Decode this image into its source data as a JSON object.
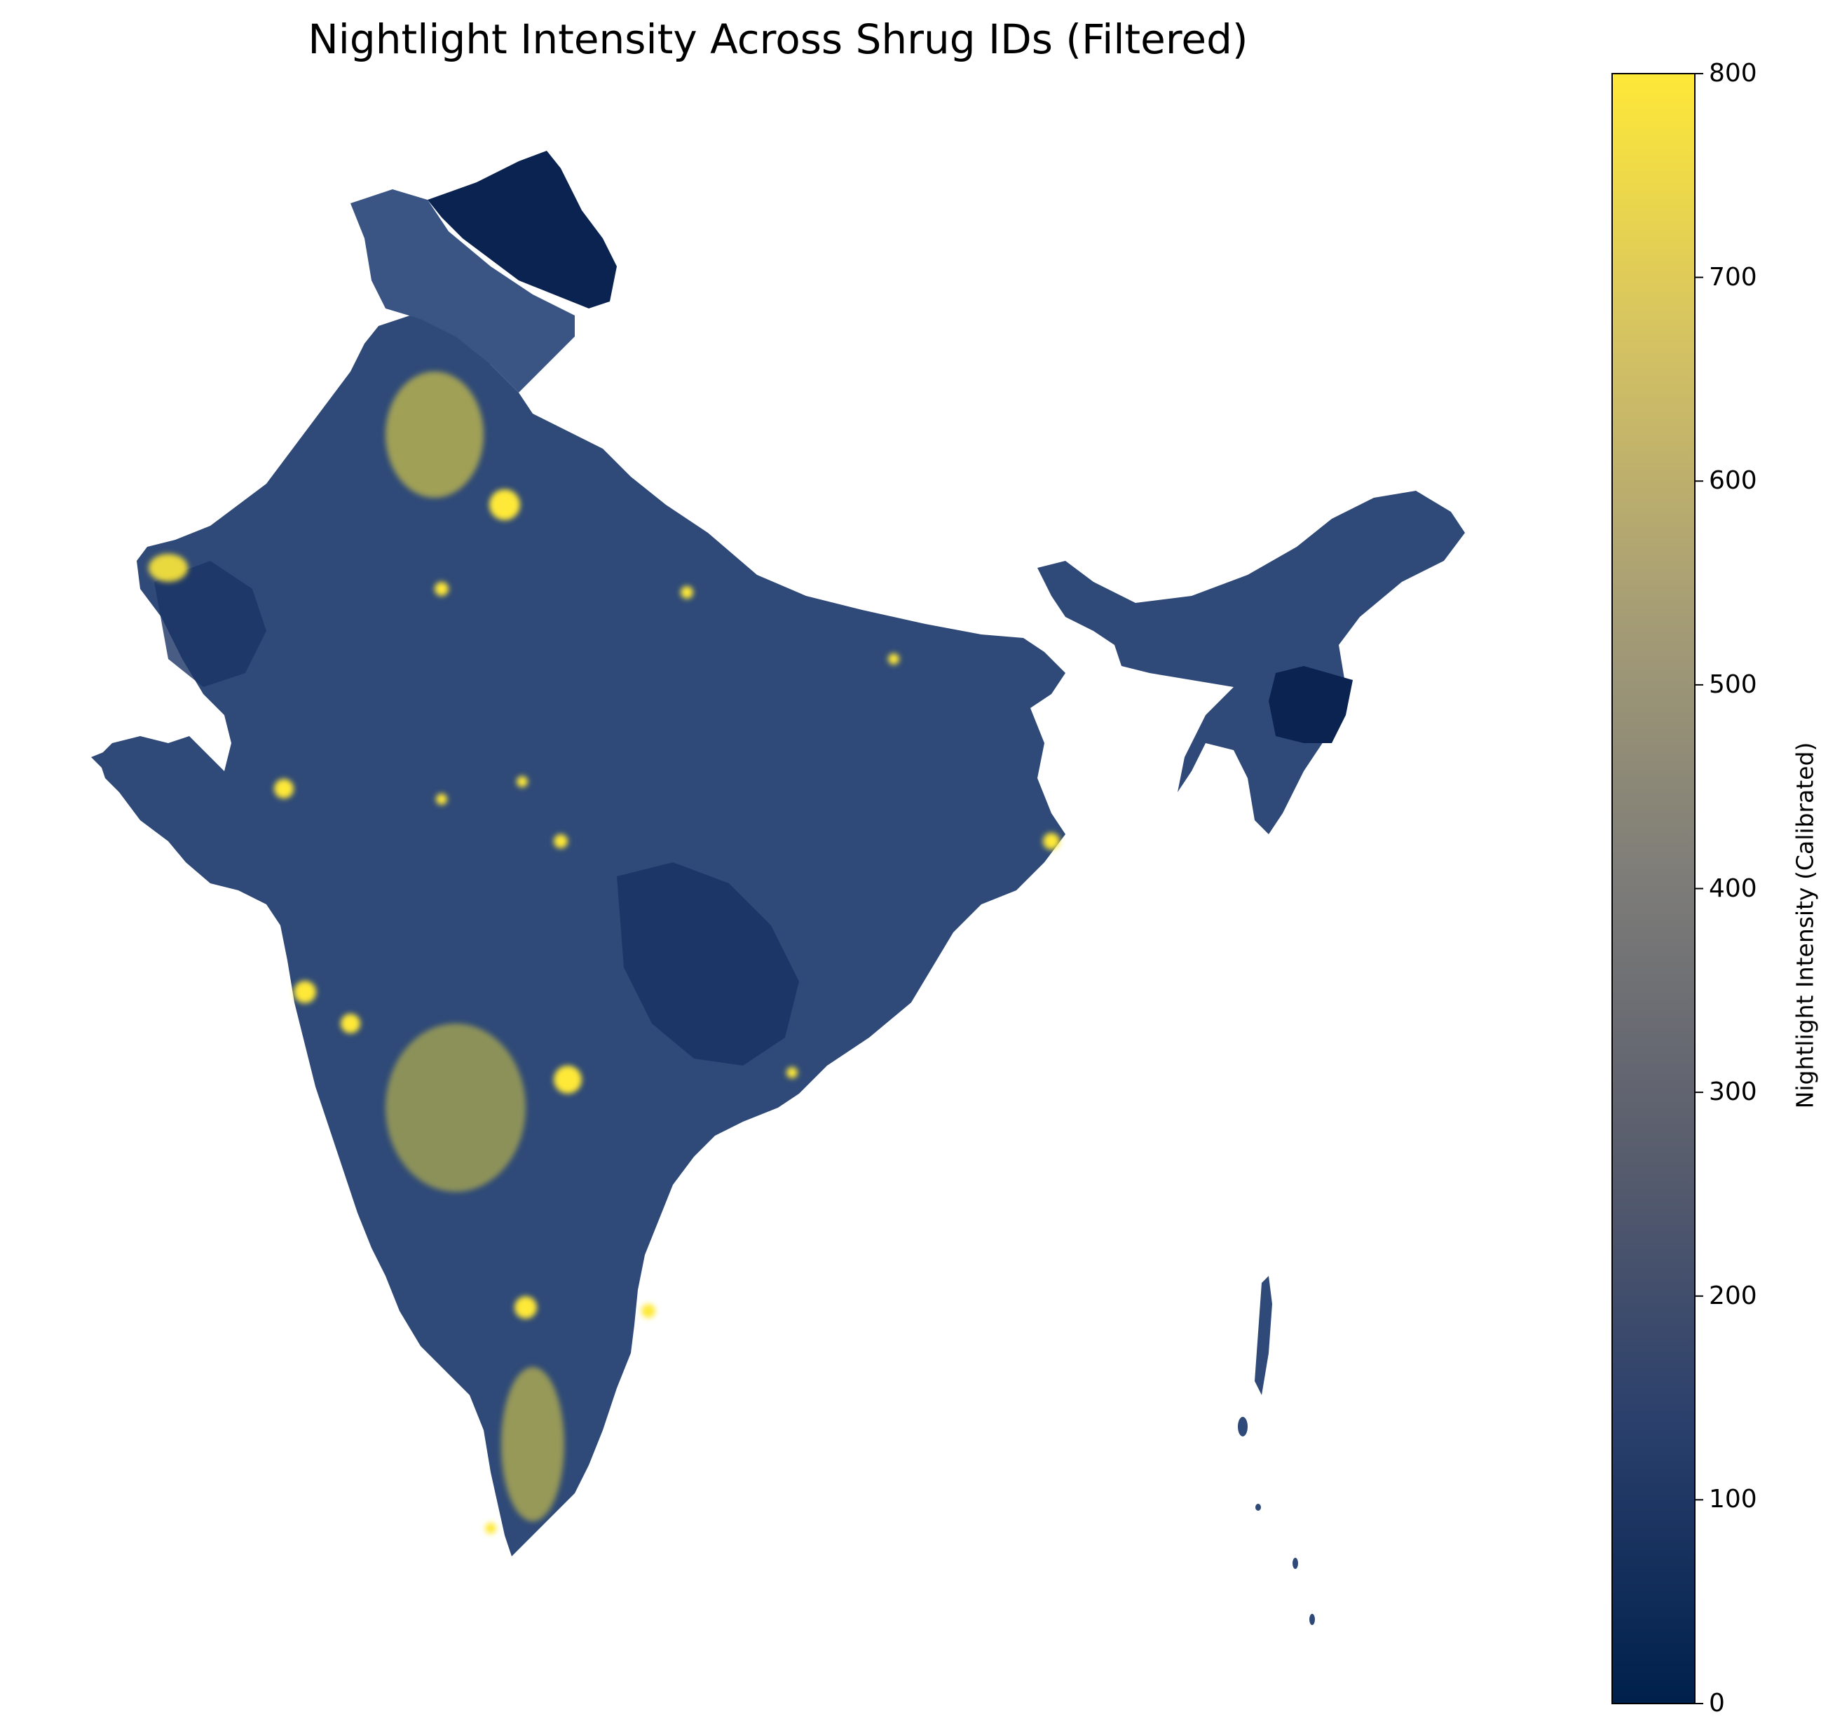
{
  "title": "Nightlight Intensity Across Shrug IDs (Filtered)",
  "colorbar": {
    "label": "Nightlight Intensity (Calibrated)",
    "min": 0,
    "max": 800,
    "ticks": [
      0,
      100,
      200,
      300,
      400,
      500,
      600,
      700,
      800
    ],
    "colormap": "cividis",
    "stops": [
      "#00204c",
      "#2a3f6c",
      "#575c6d",
      "#7c7b78",
      "#a69d75",
      "#d3c164",
      "#fee838"
    ]
  },
  "chart_data": {
    "type": "heatmap",
    "title": "Nightlight Intensity Across Shrug IDs (Filtered)",
    "colorbar_label": "Nightlight Intensity (Calibrated)",
    "color_range": [
      0,
      800
    ],
    "colorbar_ticks": [
      0,
      100,
      200,
      300,
      400,
      500,
      600,
      700,
      800
    ],
    "axes": "off"
  }
}
